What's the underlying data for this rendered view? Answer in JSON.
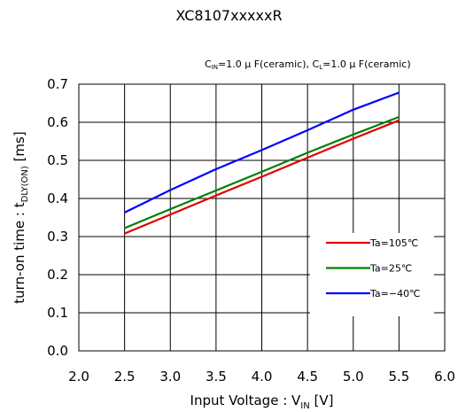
{
  "chart_data": {
    "type": "line",
    "title": "XC8107xxxxxR",
    "conditions": {
      "cin_main": "C",
      "cin_sub": "IN",
      "cin_rest": "=1.0 μ F(ceramic), ",
      "cl_main": "C",
      "cl_sub": "L",
      "cl_rest": "=1.0 μ F(ceramic)"
    },
    "xlabel": {
      "main": "Input Voltage : V",
      "sub": "IN",
      "rest": " [V]"
    },
    "ylabel": {
      "main": "turn-on time : t",
      "sub": "DLY(ON)",
      "rest": " [ms]"
    },
    "xlim": [
      2.0,
      6.0
    ],
    "ylim": [
      0.0,
      0.7
    ],
    "x_ticks": [
      "2.0",
      "2.5",
      "3.0",
      "3.5",
      "4.0",
      "4.5",
      "5.0",
      "5.5",
      "6.0"
    ],
    "y_ticks": [
      "0.0",
      "0.1",
      "0.2",
      "0.3",
      "0.4",
      "0.5",
      "0.6",
      "0.7"
    ],
    "grid": true,
    "legend_position": "bottom-right",
    "series": [
      {
        "name": "Ta=105℃",
        "color": "#e00000",
        "x": [
          2.5,
          3.0,
          3.5,
          4.0,
          4.5,
          5.0,
          5.5
        ],
        "y": [
          0.308,
          0.358,
          0.408,
          0.457,
          0.507,
          0.557,
          0.605
        ]
      },
      {
        "name": "Ta=25℃",
        "color": "#008000",
        "x": [
          2.5,
          3.0,
          3.5,
          4.0,
          4.5,
          5.0,
          5.5
        ],
        "y": [
          0.322,
          0.372,
          0.421,
          0.47,
          0.52,
          0.568,
          0.614
        ]
      },
      {
        "name": "Ta=−40℃",
        "color": "#0000ff",
        "x": [
          2.5,
          3.0,
          3.5,
          4.0,
          4.5,
          5.0,
          5.5
        ],
        "y": [
          0.363,
          0.422,
          0.477,
          0.527,
          0.579,
          0.633,
          0.678
        ]
      }
    ]
  }
}
